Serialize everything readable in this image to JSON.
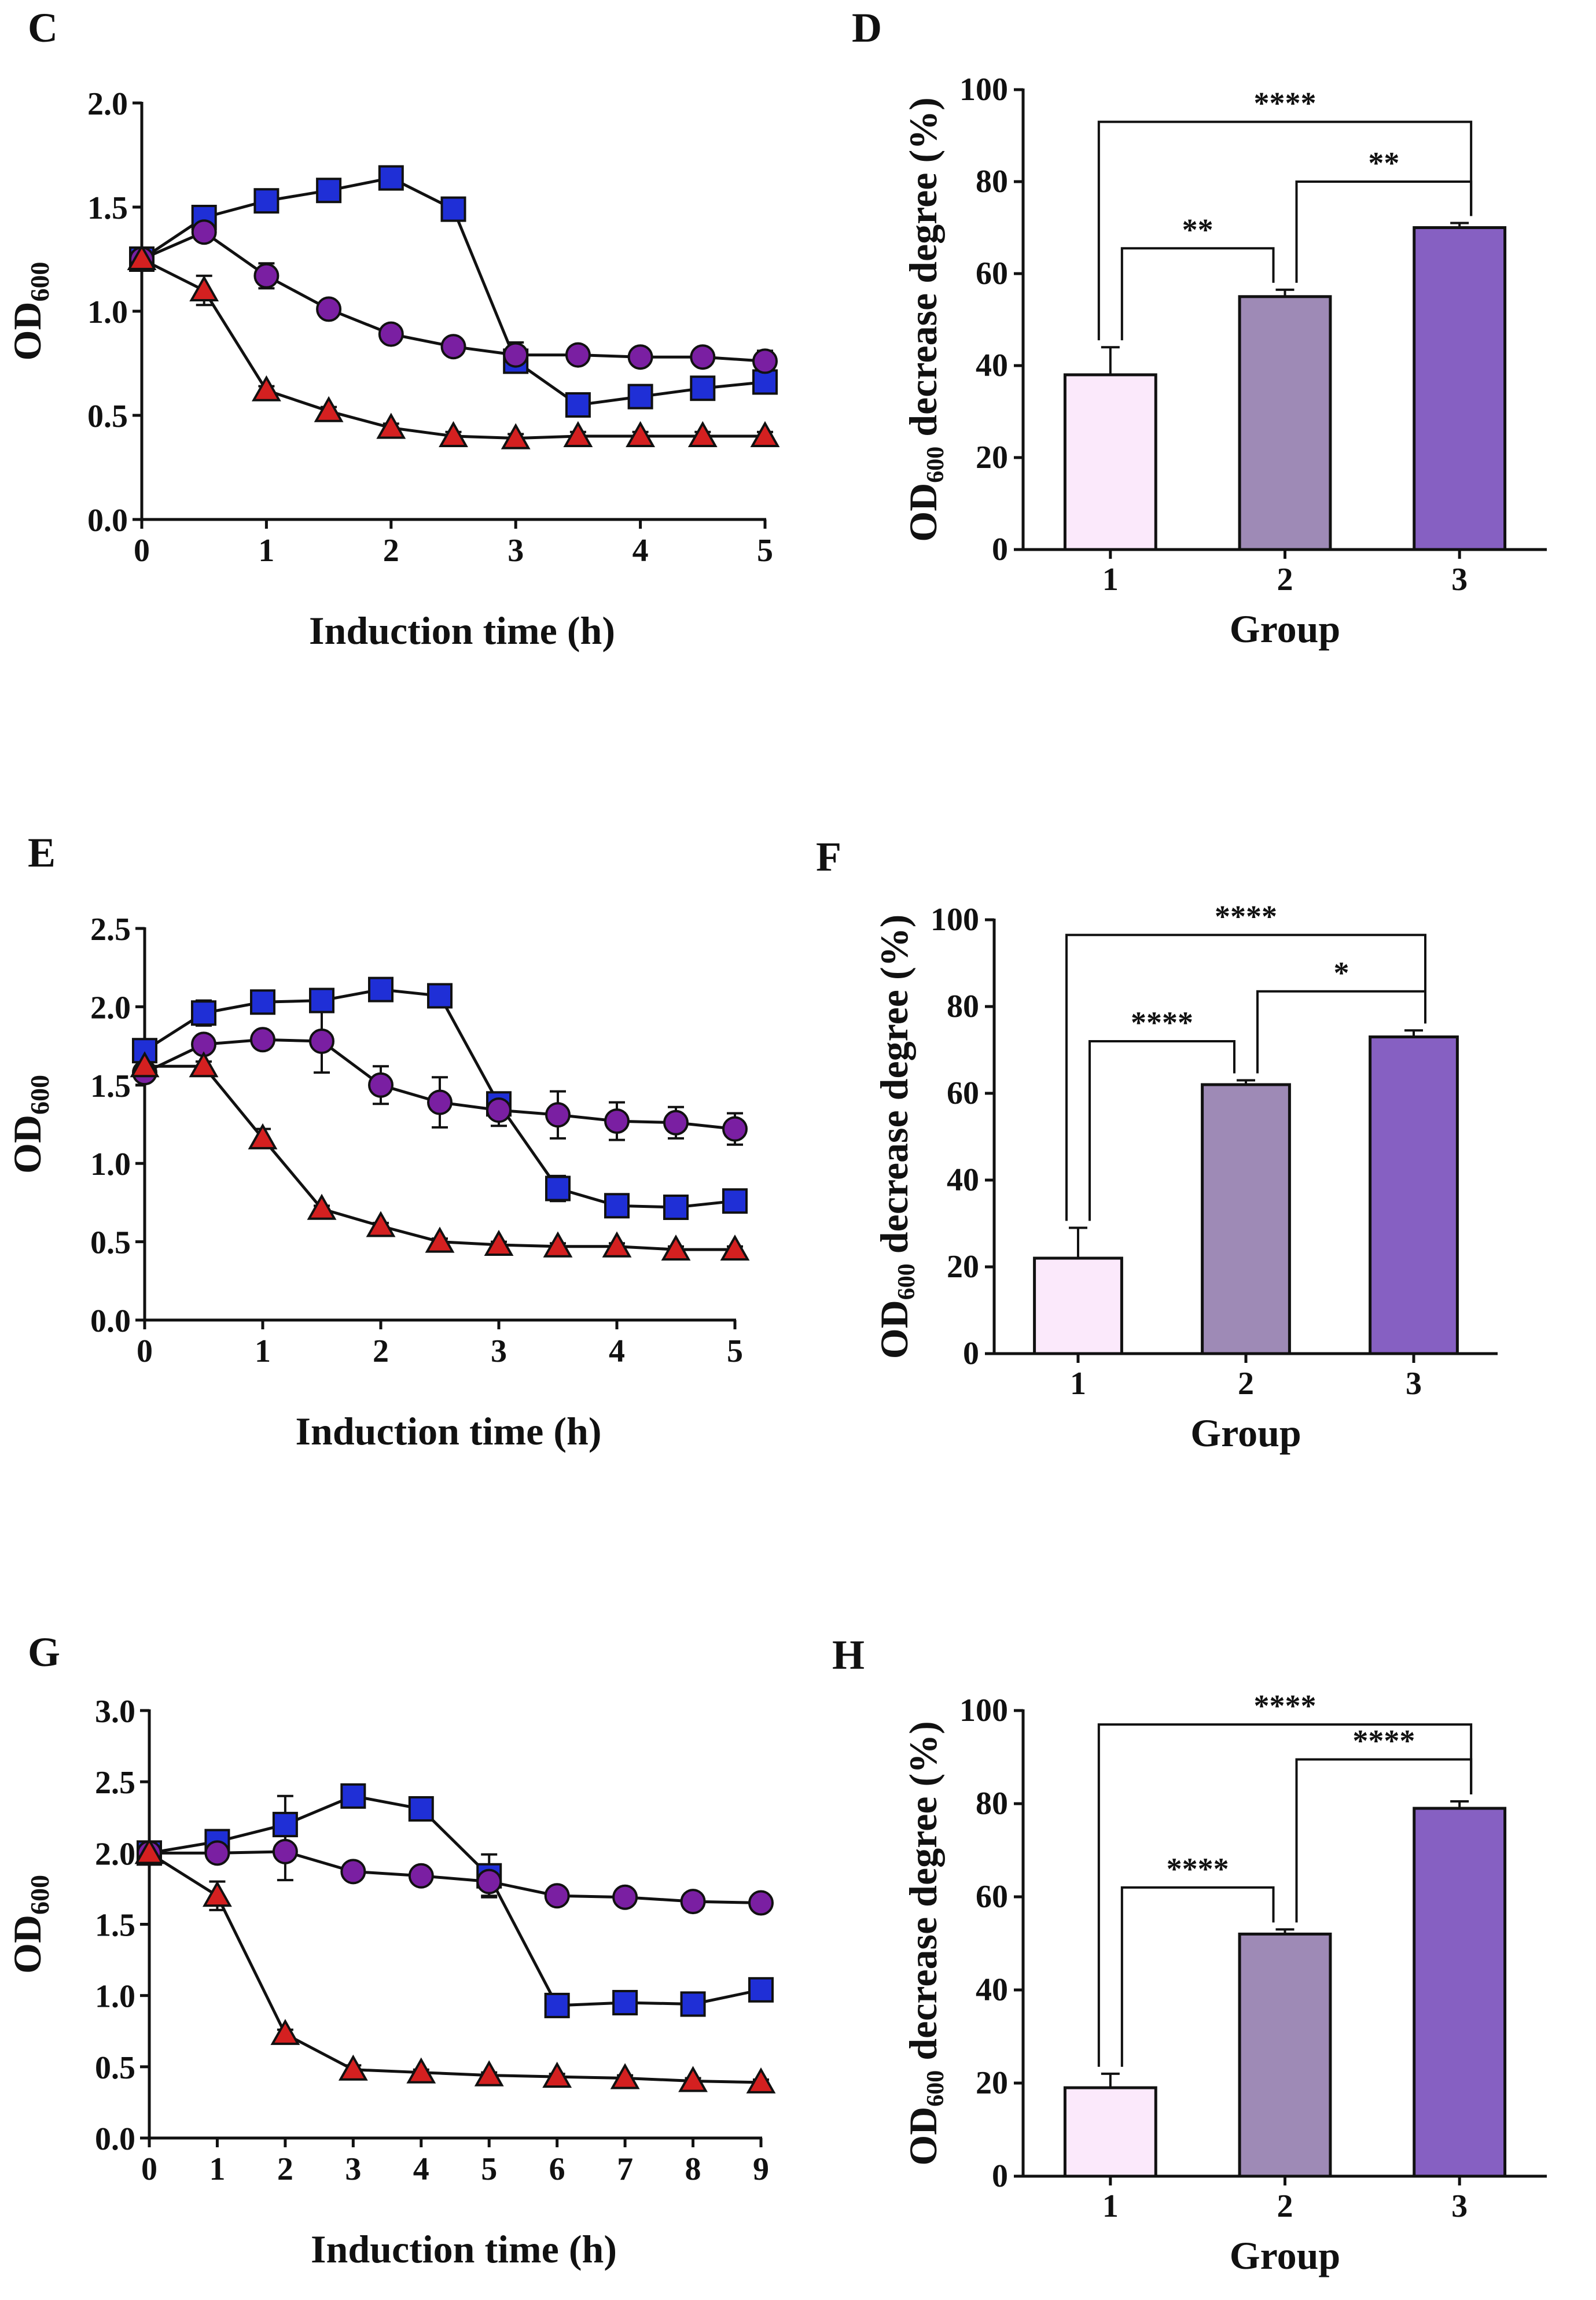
{
  "chart_data": [
    {
      "panel": "C",
      "type": "line",
      "title": "",
      "xlabel": "Induction time (h)",
      "ylabel_main": "OD",
      "ylabel_sub": "600",
      "xlim": [
        0,
        5
      ],
      "ylim": [
        0.0,
        2.0
      ],
      "xticks": [
        0,
        1,
        2,
        3,
        4,
        5
      ],
      "yticks": [
        "0.0",
        "0.5",
        "1.0",
        "1.5",
        "2.0"
      ],
      "series": [
        {
          "name": "square",
          "marker": "square",
          "color": "#1f2fd6",
          "x": [
            0,
            0.5,
            1,
            1.5,
            2,
            2.5,
            3,
            3.5,
            4,
            4.5,
            5
          ],
          "y": [
            1.25,
            1.45,
            1.53,
            1.58,
            1.64,
            1.49,
            0.76,
            0.55,
            0.59,
            0.63,
            0.66
          ],
          "err": [
            0.03,
            0.03,
            0.03,
            0.02,
            0.02,
            0.03,
            0.04,
            0.02,
            0.02,
            0.02,
            0.03
          ]
        },
        {
          "name": "circle",
          "marker": "circle",
          "color": "#7a1fa2",
          "x": [
            0,
            0.5,
            1,
            1.5,
            2,
            2.5,
            3,
            3.5,
            4,
            4.5,
            5
          ],
          "y": [
            1.25,
            1.38,
            1.17,
            1.01,
            0.89,
            0.83,
            0.79,
            0.79,
            0.78,
            0.78,
            0.76
          ],
          "err": [
            0.03,
            0.03,
            0.06,
            0.02,
            0.02,
            0.02,
            0.06,
            0.02,
            0.02,
            0.02,
            0.05
          ]
        },
        {
          "name": "triangle",
          "marker": "triangle",
          "color": "#d42020",
          "x": [
            0,
            0.5,
            1,
            1.5,
            2,
            2.5,
            3,
            3.5,
            4,
            4.5,
            5
          ],
          "y": [
            1.25,
            1.1,
            0.62,
            0.52,
            0.44,
            0.4,
            0.39,
            0.4,
            0.4,
            0.4,
            0.4
          ],
          "err": [
            0.03,
            0.07,
            0.02,
            0.02,
            0.02,
            0.02,
            0.02,
            0.02,
            0.02,
            0.02,
            0.02
          ]
        }
      ]
    },
    {
      "panel": "D",
      "type": "bar",
      "ylabel_main": "OD",
      "ylabel_sub": "600",
      "ylabel_rest": " decrease degree (%)",
      "xlabel": "Group",
      "ylim": [
        0,
        100
      ],
      "yticks": [
        "0",
        "20",
        "40",
        "60",
        "80",
        "100"
      ],
      "categories": [
        "1",
        "2",
        "3"
      ],
      "values": [
        38,
        55,
        70
      ],
      "errors": [
        6,
        1.5,
        1
      ],
      "colors": [
        "#fbe9fb",
        "#9e8ab6",
        "#8660c2"
      ],
      "comparisons": [
        {
          "from": 0,
          "to": 1,
          "label": "**"
        },
        {
          "from": 1,
          "to": 2,
          "label": "**"
        },
        {
          "from": 0,
          "to": 2,
          "label": "****"
        }
      ]
    },
    {
      "panel": "E",
      "type": "line",
      "xlabel": "Induction time (h)",
      "ylabel_main": "OD",
      "ylabel_sub": "600",
      "xlim": [
        0,
        5
      ],
      "ylim": [
        0.0,
        2.5
      ],
      "xticks": [
        0,
        1,
        2,
        3,
        4,
        5
      ],
      "yticks": [
        "0.0",
        "0.5",
        "1.0",
        "1.5",
        "2.0",
        "2.5"
      ],
      "series": [
        {
          "name": "square",
          "marker": "square",
          "color": "#1f2fd6",
          "x": [
            0,
            0.5,
            1,
            1.5,
            2,
            2.5,
            3,
            3.5,
            4,
            4.5,
            5
          ],
          "y": [
            1.72,
            1.96,
            2.03,
            2.04,
            2.11,
            2.07,
            1.38,
            0.84,
            0.73,
            0.72,
            0.76
          ],
          "err": [
            0.05,
            0.08,
            0.03,
            0.05,
            0.02,
            0.05,
            0.05,
            0.08,
            0.03,
            0.03,
            0.03
          ]
        },
        {
          "name": "circle",
          "marker": "circle",
          "color": "#7a1fa2",
          "x": [
            0,
            0.5,
            1,
            1.5,
            2,
            2.5,
            3,
            3.5,
            4,
            4.5,
            5
          ],
          "y": [
            1.58,
            1.76,
            1.79,
            1.78,
            1.5,
            1.39,
            1.34,
            1.31,
            1.27,
            1.26,
            1.22
          ],
          "err": [
            0.05,
            0.05,
            0.03,
            0.2,
            0.12,
            0.16,
            0.1,
            0.15,
            0.12,
            0.1,
            0.1
          ]
        },
        {
          "name": "triangle",
          "marker": "triangle",
          "color": "#d42020",
          "x": [
            0,
            0.5,
            1,
            1.5,
            2,
            2.5,
            3,
            3.5,
            4,
            4.5,
            5
          ],
          "y": [
            1.62,
            1.62,
            1.16,
            0.71,
            0.6,
            0.5,
            0.48,
            0.47,
            0.47,
            0.45,
            0.45
          ],
          "err": [
            0.03,
            0.03,
            0.06,
            0.02,
            0.02,
            0.02,
            0.02,
            0.02,
            0.02,
            0.02,
            0.02
          ]
        }
      ]
    },
    {
      "panel": "F",
      "type": "bar",
      "ylabel_main": "OD",
      "ylabel_sub": "600",
      "ylabel_rest": " decrease degree (%)",
      "xlabel": "Group",
      "ylim": [
        0,
        100
      ],
      "yticks": [
        "0",
        "20",
        "40",
        "60",
        "80",
        "100"
      ],
      "categories": [
        "1",
        "2",
        "3"
      ],
      "values": [
        22,
        62,
        73
      ],
      "errors": [
        7,
        1,
        1.5
      ],
      "colors": [
        "#fbe9fb",
        "#9e8ab6",
        "#8660c2"
      ],
      "comparisons": [
        {
          "from": 0,
          "to": 1,
          "label": "****"
        },
        {
          "from": 1,
          "to": 2,
          "label": "*"
        },
        {
          "from": 0,
          "to": 2,
          "label": "****"
        }
      ]
    },
    {
      "panel": "G",
      "type": "line",
      "xlabel": "Induction time (h)",
      "ylabel_main": "OD",
      "ylabel_sub": "600",
      "xlim": [
        0,
        9
      ],
      "ylim": [
        0.0,
        3.0
      ],
      "xticks": [
        0,
        1,
        2,
        3,
        4,
        5,
        6,
        7,
        8,
        9
      ],
      "yticks": [
        "0.0",
        "0.5",
        "1.0",
        "1.5",
        "2.0",
        "2.5",
        "3.0"
      ],
      "series": [
        {
          "name": "square",
          "marker": "square",
          "color": "#1f2fd6",
          "x": [
            0,
            1,
            2,
            3,
            4,
            5,
            6,
            7,
            8,
            9
          ],
          "y": [
            2.0,
            2.08,
            2.2,
            2.4,
            2.31,
            1.84,
            0.93,
            0.95,
            0.94,
            1.04
          ],
          "err": [
            0.03,
            0.04,
            0.2,
            0.05,
            0.05,
            0.15,
            0.04,
            0.03,
            0.03,
            0.03
          ]
        },
        {
          "name": "circle",
          "marker": "circle",
          "color": "#7a1fa2",
          "x": [
            0,
            1,
            2,
            3,
            4,
            5,
            6,
            7,
            8,
            9
          ],
          "y": [
            2.0,
            2.0,
            2.01,
            1.87,
            1.84,
            1.8,
            1.7,
            1.69,
            1.66,
            1.65
          ],
          "err": [
            0.03,
            0.03,
            0.2,
            0.03,
            0.03,
            0.1,
            0.03,
            0.03,
            0.03,
            0.03
          ]
        },
        {
          "name": "triangle",
          "marker": "triangle",
          "color": "#d42020",
          "x": [
            0,
            1,
            2,
            3,
            4,
            5,
            6,
            7,
            8,
            9
          ],
          "y": [
            2.0,
            1.7,
            0.73,
            0.48,
            0.46,
            0.44,
            0.43,
            0.42,
            0.4,
            0.39
          ],
          "err": [
            0.03,
            0.1,
            0.03,
            0.03,
            0.02,
            0.02,
            0.02,
            0.02,
            0.02,
            0.02
          ]
        }
      ]
    },
    {
      "panel": "H",
      "type": "bar",
      "ylabel_main": "OD",
      "ylabel_sub": "600",
      "ylabel_rest": " decrease degree (%)",
      "xlabel": "Group",
      "ylim": [
        0,
        100
      ],
      "yticks": [
        "0",
        "20",
        "40",
        "60",
        "80",
        "100"
      ],
      "categories": [
        "1",
        "2",
        "3"
      ],
      "values": [
        19,
        52,
        79
      ],
      "errors": [
        3,
        1,
        1.5
      ],
      "colors": [
        "#fbe9fb",
        "#9e8ab6",
        "#8660c2"
      ],
      "comparisons": [
        {
          "from": 0,
          "to": 1,
          "label": "****"
        },
        {
          "from": 1,
          "to": 2,
          "label": "****"
        },
        {
          "from": 0,
          "to": 2,
          "label": "****"
        }
      ]
    }
  ]
}
